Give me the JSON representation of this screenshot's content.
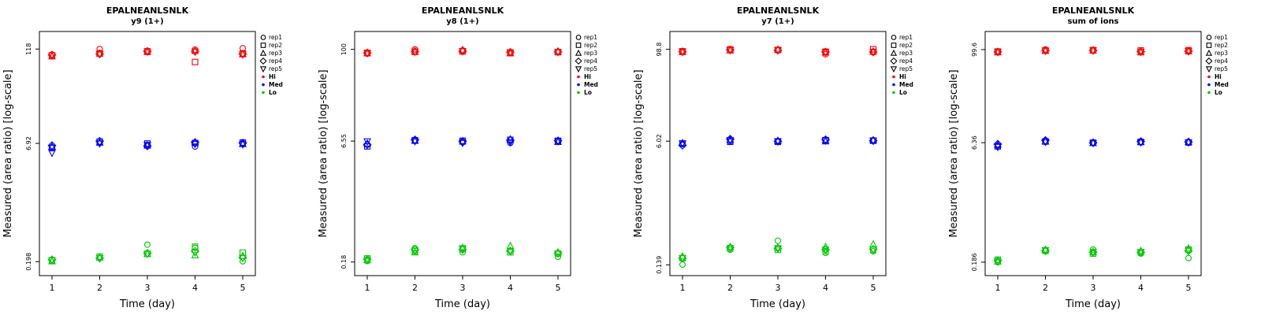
{
  "axis": {
    "x_label": "Time (day)",
    "y_label": "Measured (area ratio) [log-scale]",
    "x_ticks": [
      1,
      2,
      3,
      4,
      5
    ]
  },
  "colors": {
    "Hi": "#ff0000",
    "Med": "#0000ff",
    "Lo": "#00c800"
  },
  "legend": {
    "reps": [
      {
        "label": "rep1",
        "symbol": "circle"
      },
      {
        "label": "rep2",
        "symbol": "square"
      },
      {
        "label": "rep3",
        "symbol": "triangle-up"
      },
      {
        "label": "rep4",
        "symbol": "diamond"
      },
      {
        "label": "rep5",
        "symbol": "triangle-down"
      }
    ],
    "levels": [
      {
        "label": "Hi",
        "color": "#ff0000"
      },
      {
        "label": "Med",
        "color": "#0000ff"
      },
      {
        "label": "Lo",
        "color": "#00c800"
      }
    ]
  },
  "chart_data": [
    {
      "type": "scatter",
      "title": "EPALNEANLSNLK",
      "subtitle": "y9 (1+)",
      "x_scale": "linear",
      "y_scale": "log",
      "x": [
        1,
        2,
        3,
        4,
        5
      ],
      "ylim": [
        0.13,
        200
      ],
      "y_ticks": [
        {
          "value": 0.198,
          "label": "0.198"
        },
        {
          "value": 6.92,
          "label": "6.92"
        },
        {
          "value": 118,
          "label": "118"
        }
      ],
      "series": [
        {
          "level": "Hi",
          "rep": "rep1",
          "symbol": "circle",
          "values": [
            100,
            118,
            112,
            116,
            121
          ]
        },
        {
          "level": "Hi",
          "rep": "rep2",
          "symbol": "square",
          "values": [
            97,
            104,
            110,
            80,
            103
          ]
        },
        {
          "level": "Hi",
          "rep": "rep3",
          "symbol": "triangle-up",
          "values": [
            95,
            103,
            108,
            112,
            101
          ]
        },
        {
          "level": "Hi",
          "rep": "rep4",
          "symbol": "diamond",
          "values": [
            99,
            102,
            110,
            110,
            102
          ]
        },
        {
          "level": "Hi",
          "rep": "rep5",
          "symbol": "triangle-down",
          "values": [
            97,
            101,
            109,
            109,
            100
          ]
        },
        {
          "level": "Med",
          "rep": "rep1",
          "symbol": "circle",
          "values": [
            6.2,
            7.0,
            6.6,
            6.3,
            6.9
          ]
        },
        {
          "level": "Med",
          "rep": "rep2",
          "symbol": "square",
          "values": [
            6.0,
            7.3,
            6.9,
            7.0,
            7.1
          ]
        },
        {
          "level": "Med",
          "rep": "rep3",
          "symbol": "triangle-up",
          "values": [
            6.3,
            7.1,
            6.5,
            7.2,
            6.8
          ]
        },
        {
          "level": "Med",
          "rep": "rep4",
          "symbol": "diamond",
          "values": [
            6.5,
            7.4,
            6.4,
            7.1,
            7.0
          ]
        },
        {
          "level": "Med",
          "rep": "rep5",
          "symbol": "triangle-down",
          "values": [
            5.2,
            6.9,
            6.6,
            6.8,
            6.7
          ]
        },
        {
          "level": "Lo",
          "rep": "rep1",
          "symbol": "circle",
          "values": [
            0.21,
            0.22,
            0.33,
            0.3,
            0.2
          ]
        },
        {
          "level": "Lo",
          "rep": "rep2",
          "symbol": "square",
          "values": [
            0.205,
            0.23,
            0.25,
            0.31,
            0.26
          ]
        },
        {
          "level": "Lo",
          "rep": "rep3",
          "symbol": "triangle-up",
          "values": [
            0.2,
            0.225,
            0.25,
            0.24,
            0.235
          ]
        },
        {
          "level": "Lo",
          "rep": "rep4",
          "symbol": "diamond",
          "values": [
            0.21,
            0.22,
            0.255,
            0.27,
            0.225
          ]
        },
        {
          "level": "Lo",
          "rep": "rep5",
          "symbol": "triangle-down",
          "values": [
            0.205,
            0.22,
            0.25,
            0.26,
            0.22
          ]
        }
      ]
    },
    {
      "type": "scatter",
      "title": "EPALNEANLSNLK",
      "subtitle": "y8 (1+)",
      "x_scale": "linear",
      "y_scale": "log",
      "x": [
        1,
        2,
        3,
        4,
        5
      ],
      "ylim": [
        0.12,
        170
      ],
      "y_ticks": [
        {
          "value": 0.18,
          "label": "0.18"
        },
        {
          "value": 6.55,
          "label": "6.55"
        },
        {
          "value": 100,
          "label": "100"
        }
      ],
      "series": [
        {
          "level": "Hi",
          "rep": "rep1",
          "symbol": "circle",
          "values": [
            88,
            100,
            97,
            90,
            93
          ]
        },
        {
          "level": "Hi",
          "rep": "rep2",
          "symbol": "square",
          "values": [
            90,
            93,
            94,
            91,
            92
          ]
        },
        {
          "level": "Hi",
          "rep": "rep3",
          "symbol": "triangle-up",
          "values": [
            89,
            93,
            98,
            89,
            94
          ]
        },
        {
          "level": "Hi",
          "rep": "rep4",
          "symbol": "diamond",
          "values": [
            90,
            94,
            95,
            92,
            93
          ]
        },
        {
          "level": "Hi",
          "rep": "rep5",
          "symbol": "triangle-down",
          "values": [
            89,
            93,
            95,
            91,
            92
          ]
        },
        {
          "level": "Med",
          "rep": "rep1",
          "symbol": "circle",
          "values": [
            5.9,
            6.6,
            6.3,
            6.2,
            6.5
          ]
        },
        {
          "level": "Med",
          "rep": "rep2",
          "symbol": "square",
          "values": [
            5.6,
            6.7,
            6.6,
            6.8,
            6.6
          ]
        },
        {
          "level": "Med",
          "rep": "rep3",
          "symbol": "triangle-up",
          "values": [
            6.1,
            6.6,
            6.5,
            6.9,
            6.4
          ]
        },
        {
          "level": "Med",
          "rep": "rep4",
          "symbol": "diamond",
          "values": [
            5.9,
            6.8,
            6.5,
            6.7,
            6.6
          ]
        },
        {
          "level": "Med",
          "rep": "rep5",
          "symbol": "triangle-down",
          "values": [
            6.5,
            6.5,
            6.2,
            6.3,
            6.5
          ]
        },
        {
          "level": "Lo",
          "rep": "rep1",
          "symbol": "circle",
          "values": [
            0.185,
            0.27,
            0.24,
            0.25,
            0.21
          ]
        },
        {
          "level": "Lo",
          "rep": "rep2",
          "symbol": "square",
          "values": [
            0.2,
            0.25,
            0.27,
            0.24,
            0.23
          ]
        },
        {
          "level": "Lo",
          "rep": "rep3",
          "symbol": "triangle-up",
          "values": [
            0.19,
            0.24,
            0.275,
            0.29,
            0.24
          ]
        },
        {
          "level": "Lo",
          "rep": "rep4",
          "symbol": "diamond",
          "values": [
            0.195,
            0.26,
            0.26,
            0.25,
            0.235
          ]
        },
        {
          "level": "Lo",
          "rep": "rep5",
          "symbol": "triangle-down",
          "values": [
            0.19,
            0.25,
            0.265,
            0.25,
            0.23
          ]
        }
      ]
    },
    {
      "type": "scatter",
      "title": "EPALNEANLSNLK",
      "subtitle": "y7 (1+)",
      "x_scale": "linear",
      "y_scale": "log",
      "x": [
        1,
        2,
        3,
        4,
        5
      ],
      "ylim": [
        0.1,
        170
      ],
      "y_ticks": [
        {
          "value": 0.139,
          "label": "0.139"
        },
        {
          "value": 6.02,
          "label": "6.02"
        },
        {
          "value": 98.8,
          "label": "98.8"
        }
      ],
      "series": [
        {
          "level": "Hi",
          "rep": "rep1",
          "symbol": "circle",
          "values": [
            92,
            97,
            96,
            85,
            90
          ]
        },
        {
          "level": "Hi",
          "rep": "rep2",
          "symbol": "square",
          "values": [
            93,
            99,
            97,
            92,
            99
          ]
        },
        {
          "level": "Hi",
          "rep": "rep3",
          "symbol": "triangle-up",
          "values": [
            91,
            96,
            98,
            90,
            92
          ]
        },
        {
          "level": "Hi",
          "rep": "rep4",
          "symbol": "diamond",
          "values": [
            92,
            97,
            96,
            91,
            91
          ]
        },
        {
          "level": "Hi",
          "rep": "rep5",
          "symbol": "triangle-down",
          "values": [
            92,
            96,
            96,
            90,
            91
          ]
        },
        {
          "level": "Med",
          "rep": "rep1",
          "symbol": "circle",
          "values": [
            5.5,
            6.0,
            5.9,
            6.3,
            6.2
          ]
        },
        {
          "level": "Med",
          "rep": "rep2",
          "symbol": "square",
          "values": [
            5.6,
            5.9,
            5.9,
            6.2,
            6.1
          ]
        },
        {
          "level": "Med",
          "rep": "rep3",
          "symbol": "triangle-up",
          "values": [
            5.7,
            6.3,
            6.1,
            6.0,
            6.2
          ]
        },
        {
          "level": "Med",
          "rep": "rep4",
          "symbol": "diamond",
          "values": [
            5.3,
            6.4,
            6.0,
            6.3,
            6.1
          ]
        },
        {
          "level": "Med",
          "rep": "rep5",
          "symbol": "triangle-down",
          "values": [
            5.6,
            6.2,
            6.0,
            6.1,
            6.1
          ]
        },
        {
          "level": "Lo",
          "rep": "rep1",
          "symbol": "circle",
          "values": [
            0.14,
            0.22,
            0.29,
            0.2,
            0.21
          ]
        },
        {
          "level": "Lo",
          "rep": "rep2",
          "symbol": "square",
          "values": [
            0.17,
            0.23,
            0.22,
            0.21,
            0.22
          ]
        },
        {
          "level": "Lo",
          "rep": "rep3",
          "symbol": "triangle-up",
          "values": [
            0.18,
            0.24,
            0.235,
            0.24,
            0.26
          ]
        },
        {
          "level": "Lo",
          "rep": "rep4",
          "symbol": "diamond",
          "values": [
            0.17,
            0.235,
            0.23,
            0.22,
            0.225
          ]
        },
        {
          "level": "Lo",
          "rep": "rep5",
          "symbol": "triangle-down",
          "values": [
            0.17,
            0.23,
            0.23,
            0.22,
            0.22
          ]
        }
      ]
    },
    {
      "type": "scatter",
      "title": "EPALNEANLSNLK",
      "subtitle": "sum of ions",
      "x_scale": "linear",
      "y_scale": "log",
      "x": [
        1,
        2,
        3,
        4,
        5
      ],
      "ylim": [
        0.125,
        170
      ],
      "y_ticks": [
        {
          "value": 0.186,
          "label": "0.186"
        },
        {
          "value": 6.36,
          "label": "6.36"
        },
        {
          "value": 99.6,
          "label": "99.6"
        }
      ],
      "series": [
        {
          "level": "Hi",
          "rep": "rep1",
          "symbol": "circle",
          "values": [
            93,
            100,
            97,
            93,
            96
          ]
        },
        {
          "level": "Hi",
          "rep": "rep2",
          "symbol": "square",
          "values": [
            94,
            97,
            98,
            97,
            98
          ]
        },
        {
          "level": "Hi",
          "rep": "rep3",
          "symbol": "triangle-up",
          "values": [
            92,
            96,
            97,
            92,
            95
          ]
        },
        {
          "level": "Hi",
          "rep": "rep4",
          "symbol": "diamond",
          "values": [
            93,
            97,
            97,
            94,
            95
          ]
        },
        {
          "level": "Hi",
          "rep": "rep5",
          "symbol": "triangle-down",
          "values": [
            93,
            96,
            97,
            93,
            95
          ]
        },
        {
          "level": "Med",
          "rep": "rep1",
          "symbol": "circle",
          "values": [
            5.8,
            6.5,
            6.3,
            6.4,
            6.5
          ]
        },
        {
          "level": "Med",
          "rep": "rep2",
          "symbol": "square",
          "values": [
            5.7,
            6.6,
            6.35,
            6.5,
            6.4
          ]
        },
        {
          "level": "Med",
          "rep": "rep3",
          "symbol": "triangle-up",
          "values": [
            6.0,
            6.6,
            6.3,
            6.5,
            6.5
          ]
        },
        {
          "level": "Med",
          "rep": "rep4",
          "symbol": "diamond",
          "values": [
            6.1,
            6.8,
            6.35,
            6.6,
            6.5
          ]
        },
        {
          "level": "Med",
          "rep": "rep5",
          "symbol": "triangle-down",
          "values": [
            5.6,
            6.5,
            6.3,
            6.4,
            6.4
          ]
        },
        {
          "level": "Lo",
          "rep": "rep1",
          "symbol": "circle",
          "values": [
            0.186,
            0.26,
            0.27,
            0.24,
            0.21
          ]
        },
        {
          "level": "Lo",
          "rep": "rep2",
          "symbol": "square",
          "values": [
            0.2,
            0.26,
            0.24,
            0.25,
            0.27
          ]
        },
        {
          "level": "Lo",
          "rep": "rep3",
          "symbol": "triangle-up",
          "values": [
            0.19,
            0.27,
            0.25,
            0.26,
            0.28
          ]
        },
        {
          "level": "Lo",
          "rep": "rep4",
          "symbol": "diamond",
          "values": [
            0.195,
            0.26,
            0.25,
            0.25,
            0.26
          ]
        },
        {
          "level": "Lo",
          "rep": "rep5",
          "symbol": "triangle-down",
          "values": [
            0.19,
            0.265,
            0.25,
            0.25,
            0.26
          ]
        }
      ]
    }
  ]
}
